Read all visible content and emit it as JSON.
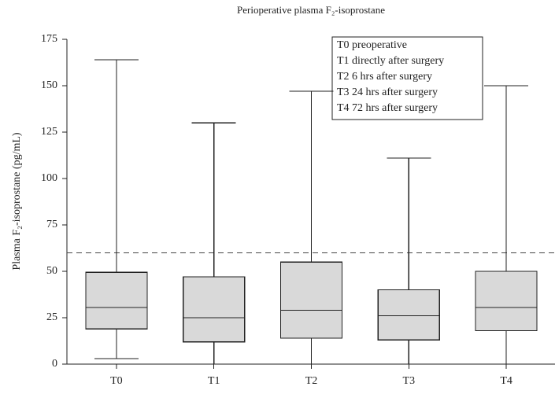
{
  "chart_data": {
    "type": "box",
    "title": "Perioperative plasma F₂-isoprostane",
    "y_label": "Plasma F₂-isoprostane (pg/mL)",
    "categories": [
      "T0",
      "T1",
      "T2",
      "T3",
      "T4"
    ],
    "boxes": [
      {
        "min": 3,
        "q1": 19,
        "median": 30.5,
        "q3": 49.5,
        "max": 164
      },
      {
        "min": 0,
        "q1": 12,
        "median": 25,
        "q3": 47,
        "max": 130
      },
      {
        "min": 0,
        "q1": 14,
        "median": 29,
        "q3": 55,
        "max": 147
      },
      {
        "min": 0,
        "q1": 13,
        "median": 26,
        "q3": 40,
        "max": 111
      },
      {
        "min": 0,
        "q1": 18,
        "median": 30.5,
        "q3": 50,
        "max": 150
      }
    ],
    "color": "#d9d9d9",
    "reference_line": 60,
    "legend_lines": [
      "T0 preoperative",
      "T1 directly after surgery",
      "T2 6 hrs after surgery",
      "T3 24 hrs after surgery",
      "T4 72 hrs after surgery"
    ],
    "ylim": [
      0,
      175
    ],
    "yticks": [
      0,
      25,
      50,
      75,
      100,
      125,
      150,
      175
    ]
  }
}
